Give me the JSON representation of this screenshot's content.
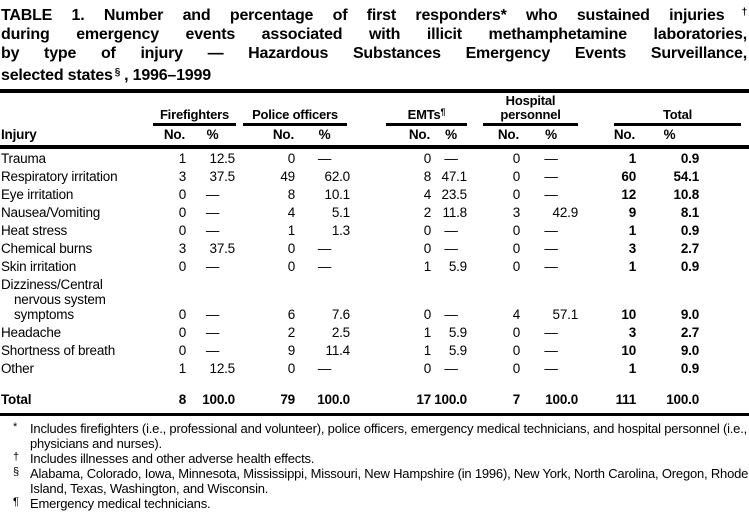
{
  "colors": {
    "text": "#000000",
    "background": "#ffffff"
  },
  "title": {
    "line1": "TABLE 1. Number and percentage of first responders* who sustained injuries",
    "sup1": "†",
    "line2": "during emergency events associated with illicit methamphetamine laboratories,",
    "line3": "by type of injury — Hazardous Substances Emergency Events Surveillance,",
    "line4a": "selected states",
    "sup2": "§",
    "line4b": ", 1996–1999"
  },
  "table": {
    "row_header": "Injury",
    "groups": [
      {
        "label": "Firefighters"
      },
      {
        "label": "Police officers"
      },
      {
        "label": "EMTs",
        "sup": "¶"
      },
      {
        "label": "Hospital personnel"
      },
      {
        "label": "Total"
      }
    ],
    "subheaders": {
      "no": "No.",
      "pct": "%"
    },
    "rows": [
      {
        "label": "Trauma",
        "values": [
          "1",
          "12.5",
          "0",
          "—",
          "0",
          "—",
          "0",
          "—",
          "1",
          "0.9"
        ]
      },
      {
        "label": "Respiratory irritation",
        "values": [
          "3",
          "37.5",
          "49",
          "62.0",
          "8",
          "47.1",
          "0",
          "—",
          "60",
          "54.1"
        ]
      },
      {
        "label": "Eye irritation",
        "values": [
          "0",
          "—",
          "8",
          "10.1",
          "4",
          "23.5",
          "0",
          "—",
          "12",
          "10.8"
        ]
      },
      {
        "label": "Nausea/Vomiting",
        "values": [
          "0",
          "—",
          "4",
          "5.1",
          "2",
          "11.8",
          "3",
          "42.9",
          "9",
          "8.1"
        ]
      },
      {
        "label": "Heat stress",
        "values": [
          "0",
          "—",
          "1",
          "1.3",
          "0",
          "—",
          "0",
          "—",
          "1",
          "0.9"
        ]
      },
      {
        "label": "Chemical burns",
        "values": [
          "3",
          "37.5",
          "0",
          "—",
          "0",
          "—",
          "0",
          "—",
          "3",
          "2.7"
        ]
      },
      {
        "label": "Skin irritation",
        "values": [
          "0",
          "—",
          "0",
          "—",
          "1",
          "5.9",
          "0",
          "—",
          "1",
          "0.9"
        ]
      },
      {
        "label_lines": [
          "Dizziness/Central",
          "nervous system",
          "symptoms"
        ],
        "values": [
          "0",
          "—",
          "6",
          "7.6",
          "0",
          "—",
          "4",
          "57.1",
          "10",
          "9.0"
        ]
      },
      {
        "label": "Headache",
        "values": [
          "0",
          "—",
          "2",
          "2.5",
          "1",
          "5.9",
          "0",
          "—",
          "3",
          "2.7"
        ]
      },
      {
        "label": "Shortness of breath",
        "values": [
          "0",
          "—",
          "9",
          "11.4",
          "1",
          "5.9",
          "0",
          "—",
          "10",
          "9.0"
        ]
      },
      {
        "label": "Other",
        "values": [
          "1",
          "12.5",
          "0",
          "—",
          "0",
          "—",
          "0",
          "—",
          "1",
          "0.9"
        ]
      }
    ],
    "total_row": {
      "label": "Total",
      "values": [
        "8",
        "100.0",
        "79",
        "100.0",
        "17",
        "100.0",
        "7",
        "100.0",
        "111",
        "100.0"
      ]
    }
  },
  "footnotes": [
    {
      "marker": "*",
      "text": "Includes firefighters (i.e., professional and volunteer), police officers, emergency medical technicians, and hospital personnel (i.e., physicians and nurses)."
    },
    {
      "marker": "†",
      "text": "Includes illnesses and other adverse health effects."
    },
    {
      "marker": "§",
      "text": "Alabama, Colorado, Iowa, Minnesota, Mississippi, Missouri, New Hampshire (in 1996), New York, North Carolina, Oregon, Rhode Island, Texas, Washington, and Wisconsin."
    },
    {
      "marker": "¶",
      "text": "Emergency medical technicians."
    }
  ]
}
